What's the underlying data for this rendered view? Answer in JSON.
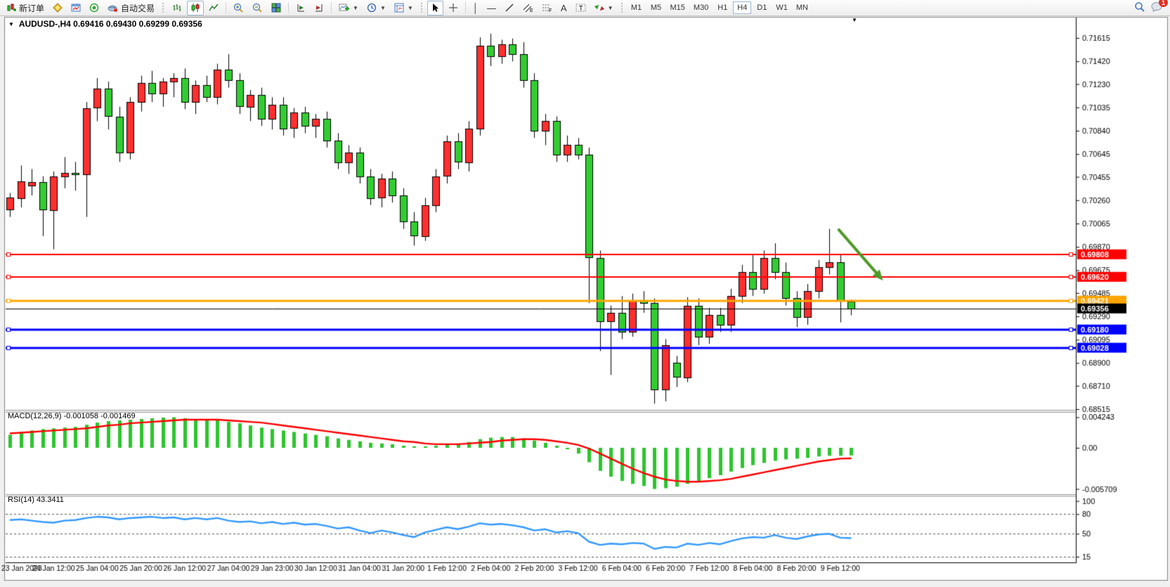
{
  "toolbar": {
    "new_order_label": "新订单",
    "autotrading_label": "自动交易",
    "timeframes": [
      "M1",
      "M5",
      "M15",
      "M30",
      "H1",
      "H4",
      "D1",
      "W1",
      "MN"
    ],
    "active_timeframe": "H4",
    "notification_count": "1",
    "icon_names": [
      "new-order-icon",
      "metaeditor-icon",
      "charts-window-icon",
      "signals-icon",
      "autotrading-icon",
      "bar-chart-icon",
      "candlestick-chart-icon",
      "line-chart-icon",
      "zoom-in-icon",
      "zoom-out-icon",
      "tile-windows-icon",
      "auto-scroll-icon",
      "chart-shift-icon",
      "add-indicator-icon",
      "periods-icon",
      "templates-icon",
      "cursor-icon",
      "crosshair-icon",
      "vertical-line-icon",
      "horizontal-line-icon",
      "trendline-icon",
      "equidistant-channel-icon",
      "fibonacci-icon",
      "text-icon",
      "text-label-icon",
      "arrows-icon",
      "search-icon",
      "chat-icon"
    ]
  },
  "chart_header": {
    "symbol": "AUDUSD-,H4",
    "open": "0.69416",
    "high": "0.69430",
    "low": "0.69299",
    "close": "0.69356"
  },
  "chart_data": {
    "type": "candlestick",
    "symbol": "AUDUSD-",
    "timeframe": "H4",
    "colors": {
      "bull": "#ff2f2f",
      "bear": "#33cc33",
      "outline": "#000000",
      "macd_histogram": "#2dc52d",
      "macd_signal": "#ff0000",
      "rsi_line": "#3399ff",
      "arrow": "#4e9a26"
    },
    "price_axis": {
      "ticks": [
        "0.71615",
        "0.71420",
        "0.71230",
        "0.71035",
        "0.70840",
        "0.70645",
        "0.70455",
        "0.70260",
        "0.70065",
        "0.69870",
        "0.69675",
        "0.69485",
        "0.69290",
        "0.69095",
        "0.68900",
        "0.68710",
        "0.68515"
      ]
    },
    "hlines": [
      {
        "price": 0.69808,
        "label": "0.69808",
        "color": "#ff0000",
        "width": 2
      },
      {
        "price": 0.6962,
        "label": "0.69620",
        "color": "#ff0000",
        "width": 2
      },
      {
        "price": 0.69421,
        "label": "0.69421",
        "color": "#ffa500",
        "width": 3
      },
      {
        "price": 0.6918,
        "label": "0.69180",
        "color": "#0000ff",
        "width": 3
      },
      {
        "price": 0.69028,
        "label": "0.69028",
        "color": "#0000ff",
        "width": 3
      }
    ],
    "current_price": {
      "price": 0.69356,
      "label": "0.69356",
      "color": "#000000"
    },
    "candles": [
      [
        0.7018,
        0.7032,
        0.7012,
        0.7028
      ],
      [
        0.7028,
        0.7055,
        0.702,
        0.7042
      ],
      [
        0.7038,
        0.7052,
        0.703,
        0.7041
      ],
      [
        0.7041,
        0.7046,
        0.6996,
        0.7018
      ],
      [
        0.7018,
        0.705,
        0.6985,
        0.7046
      ],
      [
        0.7046,
        0.7062,
        0.7036,
        0.7049
      ],
      [
        0.7049,
        0.7058,
        0.7034,
        0.7048
      ],
      [
        0.7048,
        0.7108,
        0.7012,
        0.7103
      ],
      [
        0.7103,
        0.7128,
        0.7092,
        0.7119
      ],
      [
        0.7119,
        0.7125,
        0.7085,
        0.7096
      ],
      [
        0.7096,
        0.7104,
        0.7058,
        0.7066
      ],
      [
        0.7066,
        0.7112,
        0.706,
        0.7108
      ],
      [
        0.7108,
        0.713,
        0.71,
        0.7124
      ],
      [
        0.7124,
        0.7134,
        0.7108,
        0.7115
      ],
      [
        0.7115,
        0.7128,
        0.7104,
        0.7125
      ],
      [
        0.7125,
        0.7132,
        0.7112,
        0.7128
      ],
      [
        0.7128,
        0.7136,
        0.7102,
        0.7108
      ],
      [
        0.7108,
        0.7126,
        0.7098,
        0.7122
      ],
      [
        0.7122,
        0.713,
        0.7108,
        0.7112
      ],
      [
        0.7112,
        0.714,
        0.7106,
        0.7135
      ],
      [
        0.7135,
        0.7148,
        0.712,
        0.7126
      ],
      [
        0.7126,
        0.7132,
        0.7098,
        0.7104
      ],
      [
        0.7104,
        0.7118,
        0.7092,
        0.7114
      ],
      [
        0.7114,
        0.712,
        0.7088,
        0.7094
      ],
      [
        0.7094,
        0.7112,
        0.7085,
        0.7106
      ],
      [
        0.7106,
        0.7112,
        0.708,
        0.7086
      ],
      [
        0.7086,
        0.7103,
        0.7078,
        0.7099
      ],
      [
        0.7099,
        0.7104,
        0.7082,
        0.7088
      ],
      [
        0.7088,
        0.7098,
        0.7078,
        0.7094
      ],
      [
        0.7094,
        0.71,
        0.707,
        0.7076
      ],
      [
        0.7076,
        0.7082,
        0.7052,
        0.7058
      ],
      [
        0.7058,
        0.7072,
        0.7048,
        0.7066
      ],
      [
        0.7066,
        0.707,
        0.704,
        0.7046
      ],
      [
        0.7046,
        0.7052,
        0.7022,
        0.7028
      ],
      [
        0.7028,
        0.7048,
        0.702,
        0.7044
      ],
      [
        0.7044,
        0.705,
        0.7024,
        0.703
      ],
      [
        0.703,
        0.7036,
        0.7002,
        0.7008
      ],
      [
        0.7008,
        0.7016,
        0.6988,
        0.6996
      ],
      [
        0.6996,
        0.7028,
        0.6992,
        0.7022
      ],
      [
        0.7022,
        0.7052,
        0.7016,
        0.7046
      ],
      [
        0.7046,
        0.708,
        0.704,
        0.7075
      ],
      [
        0.7075,
        0.7082,
        0.7052,
        0.7058
      ],
      [
        0.7058,
        0.7092,
        0.705,
        0.7086
      ],
      [
        0.7086,
        0.7162,
        0.708,
        0.7155
      ],
      [
        0.7155,
        0.7165,
        0.7138,
        0.7146
      ],
      [
        0.7146,
        0.716,
        0.714,
        0.7156
      ],
      [
        0.7156,
        0.7161,
        0.7142,
        0.7148
      ],
      [
        0.7148,
        0.7158,
        0.712,
        0.7126
      ],
      [
        0.7126,
        0.7132,
        0.7078,
        0.7084
      ],
      [
        0.7084,
        0.7098,
        0.7072,
        0.7092
      ],
      [
        0.7092,
        0.7096,
        0.7058,
        0.7064
      ],
      [
        0.7064,
        0.708,
        0.7058,
        0.7072
      ],
      [
        0.7072,
        0.7078,
        0.706,
        0.7064
      ],
      [
        0.7064,
        0.707,
        0.694,
        0.6978
      ],
      [
        0.6978,
        0.6984,
        0.69,
        0.6925
      ],
      [
        0.6925,
        0.6938,
        0.688,
        0.6932
      ],
      [
        0.6932,
        0.6946,
        0.691,
        0.6916
      ],
      [
        0.6916,
        0.6948,
        0.6912,
        0.6942
      ],
      [
        0.6942,
        0.695,
        0.6932,
        0.694
      ],
      [
        0.694,
        0.6944,
        0.6856,
        0.6868
      ],
      [
        0.6868,
        0.691,
        0.6858,
        0.6905
      ],
      [
        0.689,
        0.6896,
        0.687,
        0.6878
      ],
      [
        0.6878,
        0.6945,
        0.6874,
        0.6938
      ],
      [
        0.6938,
        0.6944,
        0.6905,
        0.6912
      ],
      [
        0.6912,
        0.6936,
        0.6906,
        0.693
      ],
      [
        0.693,
        0.6936,
        0.6916,
        0.6922
      ],
      [
        0.6922,
        0.6952,
        0.6916,
        0.6946
      ],
      [
        0.6946,
        0.6972,
        0.694,
        0.6966
      ],
      [
        0.6966,
        0.698,
        0.6946,
        0.6952
      ],
      [
        0.6952,
        0.6984,
        0.6948,
        0.6978
      ],
      [
        0.6978,
        0.699,
        0.696,
        0.6966
      ],
      [
        0.6966,
        0.6974,
        0.6938,
        0.6944
      ],
      [
        0.6944,
        0.695,
        0.692,
        0.6928
      ],
      [
        0.6928,
        0.6956,
        0.6922,
        0.695
      ],
      [
        0.695,
        0.6976,
        0.6944,
        0.697
      ],
      [
        0.697,
        0.7002,
        0.6964,
        0.6974
      ],
      [
        0.6974,
        0.698,
        0.6924,
        0.69416
      ],
      [
        0.69416,
        0.6943,
        0.69299,
        0.69356
      ]
    ],
    "time_labels": [
      {
        "idx": 0,
        "text": "23 Jan 2023"
      },
      {
        "idx": 4,
        "text": "24 Jan 12:00"
      },
      {
        "idx": 8,
        "text": "25 Jan 04:00"
      },
      {
        "idx": 12,
        "text": "25 Jan 20:00"
      },
      {
        "idx": 16,
        "text": "26 Jan 12:00"
      },
      {
        "idx": 20,
        "text": "27 Jan 04:00"
      },
      {
        "idx": 24,
        "text": "29 Jan 23:00"
      },
      {
        "idx": 28,
        "text": "30 Jan 12:00"
      },
      {
        "idx": 32,
        "text": "31 Jan 04:00"
      },
      {
        "idx": 36,
        "text": "31 Jan 20:00"
      },
      {
        "idx": 40,
        "text": "1 Feb 12:00"
      },
      {
        "idx": 44,
        "text": "2 Feb 04:00"
      },
      {
        "idx": 48,
        "text": "2 Feb 20:00"
      },
      {
        "idx": 52,
        "text": "3 Feb 12:00"
      },
      {
        "idx": 56,
        "text": "6 Feb 04:00"
      },
      {
        "idx": 60,
        "text": "6 Feb 20:00"
      },
      {
        "idx": 64,
        "text": "7 Feb 12:00"
      },
      {
        "idx": 68,
        "text": "8 Feb 04:00"
      },
      {
        "idx": 72,
        "text": "8 Feb 20:00"
      },
      {
        "idx": 76,
        "text": "9 Feb 12:00"
      }
    ],
    "macd": {
      "name": "MACD(12,26,9)",
      "value_main": "-0.001058",
      "value_signal": "-0.001469",
      "axis": [
        "0.004243",
        "0.00",
        "-0.005709"
      ],
      "axis_values": [
        0.004243,
        0,
        -0.005709
      ],
      "histogram": [
        0.0018,
        0.0021,
        0.0024,
        0.0026,
        0.0027,
        0.0028,
        0.0029,
        0.0032,
        0.0035,
        0.0037,
        0.0038,
        0.0039,
        0.004,
        0.0041,
        0.0042,
        0.00424,
        0.0041,
        0.004,
        0.0039,
        0.0038,
        0.0036,
        0.0034,
        0.0031,
        0.0028,
        0.0026,
        0.0024,
        0.0022,
        0.002,
        0.0018,
        0.0016,
        0.0013,
        0.0011,
        0.0009,
        0.0007,
        0.0006,
        0.0005,
        0.0003,
        0.0002,
        0.0002,
        0.0003,
        0.0005,
        0.0006,
        0.0008,
        0.0012,
        0.0014,
        0.0015,
        0.0015,
        0.0013,
        0.001,
        0.0007,
        0.0003,
        -0.0002,
        -0.0008,
        -0.002,
        -0.0032,
        -0.004,
        -0.0046,
        -0.005,
        -0.0053,
        -0.005709,
        -0.0056,
        -0.0054,
        -0.005,
        -0.0046,
        -0.0042,
        -0.0038,
        -0.0033,
        -0.0028,
        -0.0024,
        -0.0021,
        -0.0018,
        -0.0016,
        -0.0015,
        -0.0014,
        -0.0012,
        -0.0011,
        -0.0011,
        -0.001058
      ],
      "signal": [
        0.002,
        0.0021,
        0.0022,
        0.0023,
        0.0024,
        0.0025,
        0.0026,
        0.0027,
        0.0029,
        0.0031,
        0.0032,
        0.0034,
        0.0035,
        0.0036,
        0.0037,
        0.0038,
        0.0039,
        0.0039,
        0.0039,
        0.0039,
        0.0038,
        0.0037,
        0.0036,
        0.0035,
        0.0033,
        0.0031,
        0.0029,
        0.0027,
        0.0025,
        0.0023,
        0.0021,
        0.0019,
        0.0017,
        0.0015,
        0.0013,
        0.0011,
        0.0009,
        0.0008,
        0.0006,
        0.0005,
        0.0005,
        0.0005,
        0.0006,
        0.0007,
        0.0008,
        0.001,
        0.0011,
        0.0012,
        0.0012,
        0.0011,
        0.0009,
        0.0007,
        0.0004,
        -0.0001,
        -0.0008,
        -0.0015,
        -0.0022,
        -0.0029,
        -0.0035,
        -0.004,
        -0.0044,
        -0.0046,
        -0.0047,
        -0.0047,
        -0.0046,
        -0.0045,
        -0.0043,
        -0.004,
        -0.0037,
        -0.0034,
        -0.0031,
        -0.0028,
        -0.0025,
        -0.0022,
        -0.0019,
        -0.0017,
        -0.0015,
        -0.001469
      ]
    },
    "rsi": {
      "name": "RSI(14)",
      "value": "43.3411",
      "axis": [
        "100",
        "80",
        "50",
        "15"
      ],
      "axis_values": [
        100,
        80,
        50,
        15
      ],
      "levels": [
        80,
        50,
        15
      ],
      "series": [
        71,
        72,
        70,
        68,
        67,
        70,
        71,
        74,
        76,
        75,
        72,
        74,
        75,
        76,
        74,
        75,
        72,
        74,
        72,
        74,
        70,
        68,
        69,
        66,
        68,
        65,
        67,
        64,
        65,
        62,
        58,
        60,
        55,
        51,
        55,
        52,
        48,
        45,
        52,
        56,
        60,
        57,
        61,
        66,
        64,
        65,
        63,
        60,
        55,
        57,
        52,
        54,
        51,
        38,
        33,
        35,
        34,
        36,
        35,
        27,
        30,
        29,
        35,
        33,
        36,
        34,
        39,
        43,
        45,
        44,
        48,
        44,
        42,
        46,
        49,
        50,
        44,
        43.34
      ]
    },
    "arrow_annotation": {
      "index1": 75.8,
      "price1": 0.7002,
      "index2": 79.9,
      "price2": 0.6959
    }
  }
}
